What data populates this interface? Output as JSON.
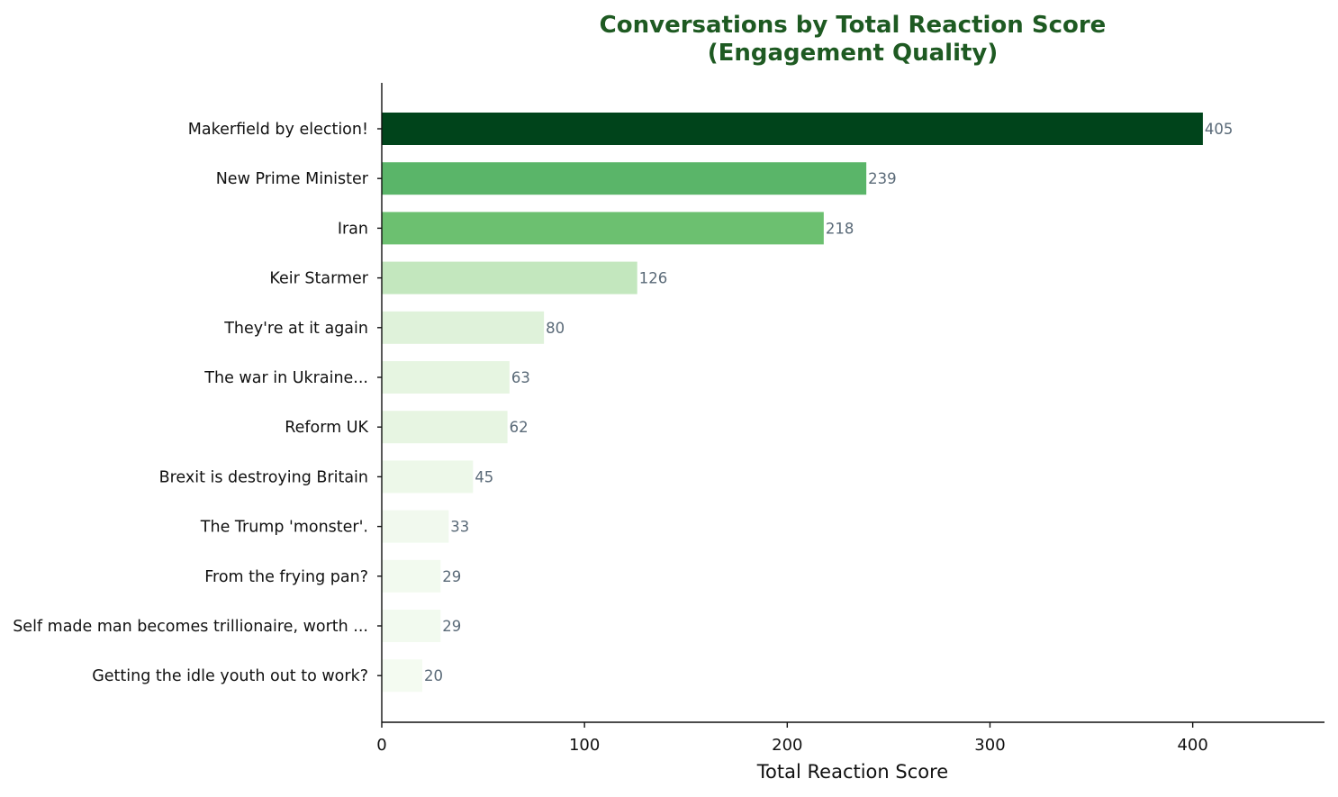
{
  "chart_data": {
    "type": "bar",
    "orientation": "horizontal",
    "title_lines": [
      "Conversations by Total Reaction Score",
      "(Engagement Quality)"
    ],
    "xlabel": "Total Reaction Score",
    "ylabel": "",
    "xlim": [
      0,
      465
    ],
    "xticks": [
      0,
      100,
      200,
      300,
      400
    ],
    "grid": false,
    "categories": [
      "Makerfield by election!",
      "New Prime Minister",
      "Iran",
      "Keir Starmer",
      "They're at it again",
      "The war in Ukraine...",
      "Reform UK",
      "Brexit is destroying Britain",
      "The Trump 'monster'.",
      "From the frying pan?",
      "Self made man becomes trillionaire, worth ...",
      "Getting the idle youth out to work?"
    ],
    "values": [
      405,
      239,
      218,
      126,
      80,
      63,
      62,
      45,
      33,
      29,
      29,
      20
    ],
    "colors": [
      "#00441b",
      "#5ab569",
      "#6cc070",
      "#c3e7be",
      "#dff2da",
      "#e6f5e1",
      "#e7f5e2",
      "#edf8e9",
      "#f1f9ee",
      "#f2faef",
      "#f2faef",
      "#f4fbf1"
    ],
    "title_color": "#1e5a22",
    "value_label_color": "#5a6a78"
  }
}
